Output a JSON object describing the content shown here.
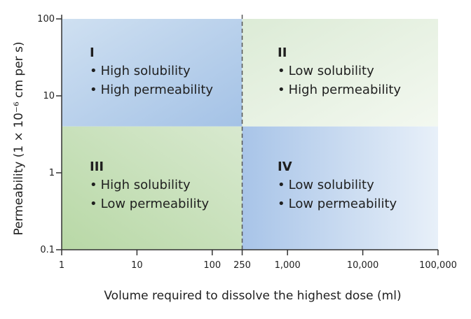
{
  "diagram": {
    "x_axis": {
      "label": "Volume required to dissolve the highest dose (ml)",
      "scale": "log",
      "range": [
        1,
        100000
      ],
      "ticks": [
        {
          "value": 1,
          "label": "1"
        },
        {
          "value": 10,
          "label": "10"
        },
        {
          "value": 100,
          "label": "100"
        },
        {
          "value": 250,
          "label": "250"
        },
        {
          "value": 1000,
          "label": "1,000"
        },
        {
          "value": 10000,
          "label": "10,000"
        },
        {
          "value": 100000,
          "label": "100,000"
        }
      ]
    },
    "y_axis": {
      "label": "Permeability (1 × 10⁻⁶ cm per s)",
      "scale": "log",
      "range": [
        0.1,
        100
      ],
      "ticks": [
        {
          "value": 0.1,
          "label": "0.1"
        },
        {
          "value": 1,
          "label": "1"
        },
        {
          "value": 10,
          "label": "10"
        },
        {
          "value": 100,
          "label": "100"
        }
      ]
    },
    "boundaries": {
      "volume_ml": 250,
      "permeability": 4
    },
    "quadrants": [
      {
        "numeral": "I",
        "items": [
          "High solubility",
          "High permeability"
        ],
        "colors": {
          "from": "#cfe0f1",
          "to": "#a4c2e6"
        }
      },
      {
        "numeral": "II",
        "items": [
          "Low solubility",
          "High permeability"
        ],
        "colors": {
          "from": "#dcebd6",
          "to": "#f3f8f0"
        }
      },
      {
        "numeral": "III",
        "items": [
          "High solubility",
          "Low permeability"
        ],
        "colors": {
          "from": "#d8e9cf",
          "to": "#b8d8a6"
        }
      },
      {
        "numeral": "IV",
        "items": [
          "Low solubility",
          "Low permeability"
        ],
        "colors": {
          "from": "#a8c4e8",
          "to": "#e8f0f9"
        }
      }
    ],
    "bullet": "•",
    "colors": {
      "axis": "#333333",
      "divider": "#555555",
      "text": "#1f1f1f"
    }
  }
}
